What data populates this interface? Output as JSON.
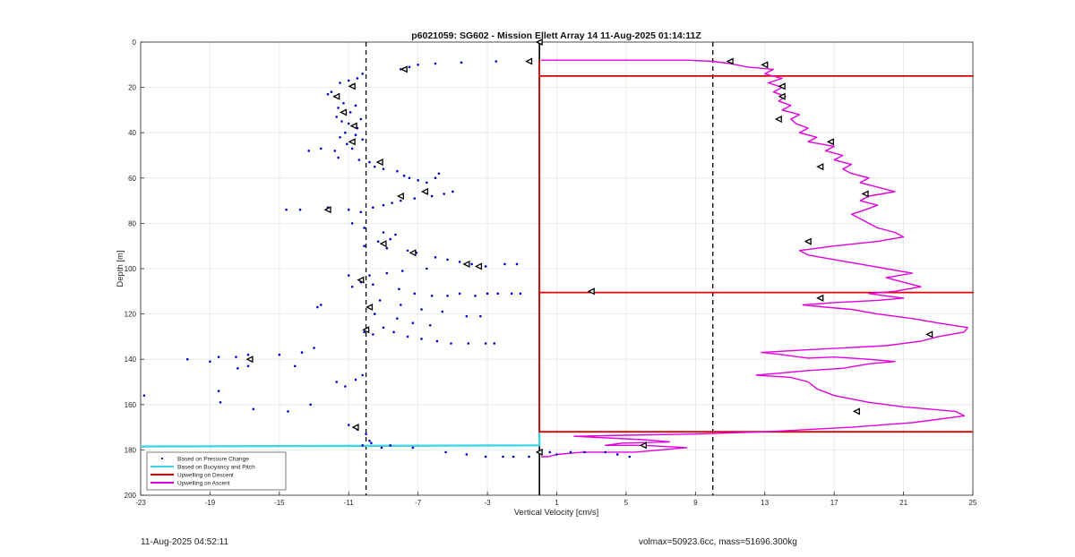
{
  "footer": {
    "left_text": "11-Aug-2025 04:52:11",
    "right_text": "volmax=50923.6cc, mass=51696.300kg"
  },
  "colors": {
    "pressure_points": "#0000cc",
    "buoyancy_line": "#3fd5e8",
    "upwelling_descent": "#e00000",
    "upwelling_ascent": "#e000e0",
    "dashed_lines": "#000000",
    "markers": "#000000"
  },
  "chart_data": {
    "type": "scatter",
    "title": "p6021059: SG602 - Mission Ellett Array 14 11-Aug-2025 01:14:11Z",
    "xlabel": "Vertical Velocity [cm/s]",
    "ylabel": "Depth [m]",
    "xlim": [
      -23,
      25
    ],
    "ylim": [
      0,
      200
    ],
    "y_reversed": true,
    "grid": true,
    "xticks": [
      "-23",
      "-19",
      "-15",
      "-11",
      "-7",
      "-3",
      "1",
      "5",
      "9",
      "13",
      "17",
      "21",
      "25"
    ],
    "yticks": [
      "0",
      "20",
      "40",
      "60",
      "80",
      "100",
      "120",
      "140",
      "160",
      "180",
      "200"
    ],
    "legend_position": "bottom-left",
    "legend": [
      "Based on Pressure Change",
      "Based on Buoyancy and Pitch",
      "Upwelling on Descent",
      "Upwelling on Ascent"
    ],
    "vlines_dashed": [
      -10,
      10
    ],
    "vline_solid": 0,
    "series": [
      {
        "name": "Based on Pressure Change",
        "kind": "scatter",
        "points": [
          [
            -8.0,
            12
          ],
          [
            -7.5,
            11
          ],
          [
            -7.0,
            10
          ],
          [
            -6.0,
            9.5
          ],
          [
            -4.5,
            9
          ],
          [
            -2.5,
            8.5
          ],
          [
            -0.6,
            8.5
          ],
          [
            -11.5,
            18
          ],
          [
            -11.0,
            17
          ],
          [
            -10.5,
            16
          ],
          [
            -10.2,
            14
          ],
          [
            -10.8,
            19
          ],
          [
            -12.0,
            22
          ],
          [
            -11.8,
            24
          ],
          [
            -12.2,
            23
          ],
          [
            -11.3,
            27
          ],
          [
            -11.6,
            29
          ],
          [
            -10.6,
            28
          ],
          [
            -10.9,
            31
          ],
          [
            -11.7,
            33
          ],
          [
            -11.4,
            35
          ],
          [
            -10.3,
            34
          ],
          [
            -11.0,
            36
          ],
          [
            -10.5,
            38
          ],
          [
            -11.2,
            40
          ],
          [
            -11.5,
            42
          ],
          [
            -10.6,
            41
          ],
          [
            -10.2,
            43
          ],
          [
            -11.1,
            45
          ],
          [
            -10.8,
            47
          ],
          [
            -11.8,
            48
          ],
          [
            -12.6,
            47
          ],
          [
            -13.3,
            48
          ],
          [
            -11.6,
            51
          ],
          [
            -10.4,
            52
          ],
          [
            -9.8,
            53
          ],
          [
            -9.5,
            55
          ],
          [
            -9.0,
            56
          ],
          [
            -8.2,
            57
          ],
          [
            -7.8,
            59
          ],
          [
            -7.5,
            60
          ],
          [
            -7.0,
            61
          ],
          [
            -6.5,
            62
          ],
          [
            -6.0,
            60
          ],
          [
            -5.8,
            58
          ],
          [
            -5.0,
            66
          ],
          [
            -5.5,
            67
          ],
          [
            -6.2,
            68
          ],
          [
            -7.2,
            69
          ],
          [
            -8.0,
            70
          ],
          [
            -8.5,
            71
          ],
          [
            -9.0,
            72
          ],
          [
            -9.6,
            73
          ],
          [
            -10.3,
            75
          ],
          [
            -11.0,
            74
          ],
          [
            -12.2,
            73
          ],
          [
            -13.8,
            74
          ],
          [
            -14.6,
            74
          ],
          [
            -10.8,
            80
          ],
          [
            -10.1,
            82
          ],
          [
            -9.0,
            84
          ],
          [
            -8.3,
            85
          ],
          [
            -8.6,
            87
          ],
          [
            -9.3,
            88
          ],
          [
            -10.1,
            90
          ],
          [
            -8.8,
            91
          ],
          [
            -7.6,
            92
          ],
          [
            -7.1,
            93
          ],
          [
            -6.0,
            95
          ],
          [
            -5.3,
            96
          ],
          [
            -4.6,
            97
          ],
          [
            -3.9,
            98
          ],
          [
            -3.1,
            99
          ],
          [
            -2.0,
            98
          ],
          [
            -1.3,
            98
          ],
          [
            -6.5,
            100
          ],
          [
            -7.9,
            101
          ],
          [
            -8.8,
            102
          ],
          [
            -9.8,
            103
          ],
          [
            -11.0,
            103
          ],
          [
            -10.3,
            106
          ],
          [
            -10.8,
            108
          ],
          [
            -9.6,
            107
          ],
          [
            -8.1,
            109
          ],
          [
            -7.2,
            111
          ],
          [
            -6.2,
            112
          ],
          [
            -5.3,
            112
          ],
          [
            -4.6,
            111
          ],
          [
            -3.7,
            112
          ],
          [
            -3.0,
            111
          ],
          [
            -2.4,
            111
          ],
          [
            -1.6,
            111
          ],
          [
            -1.1,
            111
          ],
          [
            -9.2,
            114
          ],
          [
            -8.0,
            116
          ],
          [
            -6.8,
            118
          ],
          [
            -5.6,
            119
          ],
          [
            -4.2,
            121
          ],
          [
            -3.4,
            121
          ],
          [
            -12.6,
            116
          ],
          [
            -12.8,
            117
          ],
          [
            -9.5,
            120
          ],
          [
            -8.2,
            122
          ],
          [
            -7.3,
            124
          ],
          [
            -6.3,
            125
          ],
          [
            -9.0,
            126
          ],
          [
            -8.4,
            128
          ],
          [
            -7.6,
            130
          ],
          [
            -6.8,
            131
          ],
          [
            -5.9,
            132
          ],
          [
            -5.1,
            133
          ],
          [
            -4.1,
            133
          ],
          [
            -3.1,
            133
          ],
          [
            -2.6,
            133
          ],
          [
            -10.1,
            128
          ],
          [
            -9.6,
            129
          ],
          [
            -13.0,
            135
          ],
          [
            -13.7,
            137
          ],
          [
            -15.0,
            138
          ],
          [
            -16.8,
            138
          ],
          [
            -17.5,
            139
          ],
          [
            -18.5,
            139
          ],
          [
            -19.0,
            141
          ],
          [
            -17.4,
            144
          ],
          [
            -14.1,
            143
          ],
          [
            -16.8,
            143
          ],
          [
            -20.3,
            140
          ],
          [
            -22.8,
            156
          ],
          [
            -18.5,
            154
          ],
          [
            -18.4,
            159
          ],
          [
            -16.5,
            162
          ],
          [
            -14.5,
            163
          ],
          [
            -13.2,
            160
          ],
          [
            -11.7,
            150
          ],
          [
            -11.2,
            152
          ],
          [
            -10.6,
            149
          ],
          [
            -10.2,
            147
          ],
          [
            -11.0,
            169
          ],
          [
            -10.5,
            171
          ],
          [
            -10.0,
            173
          ],
          [
            -9.8,
            176
          ],
          [
            -9.1,
            179
          ],
          [
            -8.6,
            178
          ],
          [
            -7.3,
            179
          ],
          [
            -5.4,
            181
          ],
          [
            -4.2,
            182
          ],
          [
            -3.1,
            183
          ],
          [
            -2.1,
            183
          ],
          [
            -1.5,
            183
          ],
          [
            -0.6,
            183
          ],
          [
            1.0,
            182
          ],
          [
            1.8,
            181
          ],
          [
            2.6,
            181
          ],
          [
            3.8,
            181
          ],
          [
            4.5,
            182
          ],
          [
            5.2,
            183
          ],
          [
            0.6,
            181
          ],
          [
            -9.7,
            177
          ],
          [
            -10.2,
            178
          ]
        ]
      },
      {
        "name": "Based on Buoyancy and Pitch",
        "kind": "line",
        "points": [
          [
            0,
            15
          ],
          [
            0,
            178
          ],
          [
            -23,
            178.5
          ]
        ]
      },
      {
        "name": "Upwelling on Descent",
        "kind": "line",
        "points": [
          [
            0,
            8
          ],
          [
            0,
            15
          ],
          [
            25,
            15
          ],
          [
            0,
            15
          ],
          [
            0,
            110.5
          ],
          [
            25,
            110.5
          ],
          [
            0,
            110.5
          ],
          [
            0,
            172
          ],
          [
            25,
            172
          ]
        ]
      },
      {
        "name": "Upwelling on Ascent",
        "kind": "line",
        "points": [
          [
            0.1,
            183
          ],
          [
            0.5,
            183
          ],
          [
            1.0,
            182
          ],
          [
            2.5,
            181
          ],
          [
            4.0,
            181
          ],
          [
            5.5,
            181
          ],
          [
            7.0,
            180
          ],
          [
            8.5,
            179
          ],
          [
            6.0,
            178
          ],
          [
            3.8,
            178
          ],
          [
            4.8,
            177
          ],
          [
            7.5,
            176.5
          ],
          [
            6.0,
            175.5
          ],
          [
            2.0,
            174
          ],
          [
            5.0,
            173.5
          ],
          [
            9.0,
            173
          ],
          [
            13.0,
            172
          ],
          [
            18.0,
            170
          ],
          [
            21.5,
            168
          ],
          [
            24.5,
            165
          ],
          [
            24.0,
            163
          ],
          [
            21.0,
            161
          ],
          [
            19.0,
            159
          ],
          [
            17.0,
            156
          ],
          [
            16.0,
            153
          ],
          [
            15.5,
            150
          ],
          [
            14.5,
            148
          ],
          [
            12.5,
            147
          ],
          [
            14.0,
            146
          ],
          [
            15.5,
            145
          ],
          [
            17.5,
            144
          ],
          [
            19.0,
            142
          ],
          [
            20.5,
            141
          ],
          [
            19.0,
            140
          ],
          [
            17.0,
            139
          ],
          [
            15.5,
            139.5
          ],
          [
            14.0,
            138
          ],
          [
            12.8,
            137
          ],
          [
            15.0,
            136
          ],
          [
            17.5,
            135
          ],
          [
            20.0,
            134
          ],
          [
            22.0,
            132
          ],
          [
            23.0,
            130
          ],
          [
            24.5,
            128
          ],
          [
            24.7,
            126
          ],
          [
            23.0,
            124
          ],
          [
            21.5,
            122
          ],
          [
            19.5,
            120
          ],
          [
            18.0,
            118
          ],
          [
            16.5,
            117
          ],
          [
            15.2,
            116
          ],
          [
            17.0,
            115
          ],
          [
            19.5,
            114
          ],
          [
            21.0,
            113
          ],
          [
            20.0,
            112
          ],
          [
            19.0,
            111
          ],
          [
            20.5,
            110
          ],
          [
            22.0,
            108
          ],
          [
            21.0,
            106
          ],
          [
            20.0,
            104
          ],
          [
            21.5,
            102
          ],
          [
            20.0,
            100
          ],
          [
            18.5,
            98
          ],
          [
            17.0,
            96
          ],
          [
            15.5,
            94
          ],
          [
            15.0,
            92
          ],
          [
            17.0,
            90
          ],
          [
            19.5,
            88
          ],
          [
            21.0,
            86
          ],
          [
            20.5,
            84
          ],
          [
            19.5,
            82
          ],
          [
            19.0,
            80
          ],
          [
            18.5,
            78
          ],
          [
            18.0,
            76
          ],
          [
            18.8,
            74
          ],
          [
            19.5,
            72
          ],
          [
            18.5,
            70
          ],
          [
            19.0,
            68
          ],
          [
            20.5,
            66
          ],
          [
            19.5,
            64
          ],
          [
            18.5,
            62
          ],
          [
            19.0,
            60
          ],
          [
            18.0,
            58
          ],
          [
            17.5,
            56
          ],
          [
            18.0,
            54
          ],
          [
            17.0,
            52
          ],
          [
            17.5,
            50
          ],
          [
            16.5,
            48
          ],
          [
            17.0,
            46
          ],
          [
            15.5,
            44
          ],
          [
            16.0,
            42
          ],
          [
            15.0,
            40
          ],
          [
            15.5,
            38
          ],
          [
            14.8,
            36
          ],
          [
            14.5,
            34
          ],
          [
            15.0,
            32
          ],
          [
            14.0,
            30
          ],
          [
            14.5,
            28
          ],
          [
            13.8,
            26
          ],
          [
            14.2,
            24
          ],
          [
            13.5,
            22
          ],
          [
            14.0,
            20
          ],
          [
            13.2,
            18
          ],
          [
            14.0,
            16
          ],
          [
            13.0,
            14
          ],
          [
            13.5,
            12
          ],
          [
            12.0,
            11
          ],
          [
            11.0,
            9.5
          ],
          [
            10.0,
            8.5
          ],
          [
            8.5,
            8
          ],
          [
            5.0,
            8
          ],
          [
            2.0,
            8
          ],
          [
            0.1,
            8
          ]
        ]
      }
    ],
    "markers": [
      [
        0,
        0
      ],
      [
        -0.6,
        8.5
      ],
      [
        11.0,
        8.5
      ],
      [
        13.0,
        10
      ],
      [
        -7.8,
        12
      ],
      [
        14.0,
        19.5
      ],
      [
        -10.8,
        19.5
      ],
      [
        14.0,
        24
      ],
      [
        -11.7,
        24
      ],
      [
        -11.3,
        31
      ],
      [
        13.8,
        34
      ],
      [
        -10.7,
        37
      ],
      [
        -10.8,
        44
      ],
      [
        16.8,
        44
      ],
      [
        16.2,
        55
      ],
      [
        -9.2,
        53
      ],
      [
        -8.0,
        68
      ],
      [
        18.8,
        67
      ],
      [
        -6.6,
        66
      ],
      [
        -12.2,
        74
      ],
      [
        15.5,
        88
      ],
      [
        -9.0,
        89
      ],
      [
        -7.3,
        93
      ],
      [
        -4.2,
        98
      ],
      [
        -3.5,
        99
      ],
      [
        3.0,
        110
      ],
      [
        16.2,
        113
      ],
      [
        -10.3,
        105
      ],
      [
        -9.8,
        117
      ],
      [
        -10.0,
        127
      ],
      [
        22.5,
        129
      ],
      [
        -16.7,
        140
      ],
      [
        18.3,
        163
      ],
      [
        -10.6,
        170
      ],
      [
        6.0,
        178
      ],
      [
        0.0,
        181
      ]
    ]
  }
}
